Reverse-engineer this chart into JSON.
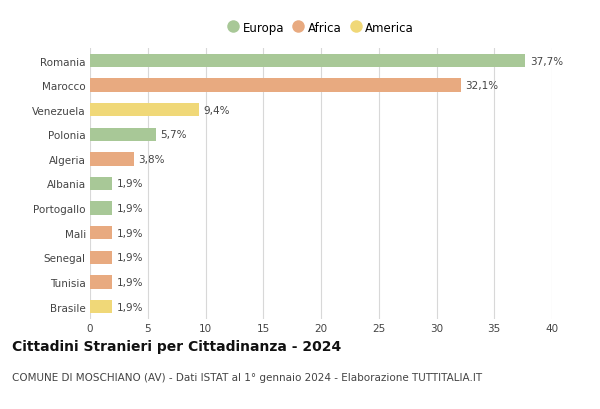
{
  "categories": [
    "Romania",
    "Marocco",
    "Venezuela",
    "Polonia",
    "Algeria",
    "Albania",
    "Portogallo",
    "Mali",
    "Senegal",
    "Tunisia",
    "Brasile"
  ],
  "values": [
    37.7,
    32.1,
    9.4,
    5.7,
    3.8,
    1.9,
    1.9,
    1.9,
    1.9,
    1.9,
    1.9
  ],
  "labels": [
    "37,7%",
    "32,1%",
    "9,4%",
    "5,7%",
    "3,8%",
    "1,9%",
    "1,9%",
    "1,9%",
    "1,9%",
    "1,9%",
    "1,9%"
  ],
  "colors": [
    "#a8c897",
    "#e8aa80",
    "#f0d878",
    "#a8c897",
    "#e8aa80",
    "#a8c897",
    "#a8c897",
    "#e8aa80",
    "#e8aa80",
    "#e8aa80",
    "#f0d878"
  ],
  "legend": [
    {
      "label": "Europa",
      "color": "#a8c897"
    },
    {
      "label": "Africa",
      "color": "#e8aa80"
    },
    {
      "label": "America",
      "color": "#f0d878"
    }
  ],
  "xlim": [
    0,
    40
  ],
  "xticks": [
    0,
    5,
    10,
    15,
    20,
    25,
    30,
    35,
    40
  ],
  "title": "Cittadini Stranieri per Cittadinanza - 2024",
  "subtitle": "COMUNE DI MOSCHIANO (AV) - Dati ISTAT al 1° gennaio 2024 - Elaborazione TUTTITALIA.IT",
  "background_color": "#ffffff",
  "plot_bg_color": "#ffffff",
  "grid_color": "#d8d8d8",
  "bar_height": 0.55,
  "title_fontsize": 10,
  "subtitle_fontsize": 7.5,
  "label_fontsize": 7.5,
  "tick_fontsize": 7.5,
  "legend_fontsize": 8.5
}
